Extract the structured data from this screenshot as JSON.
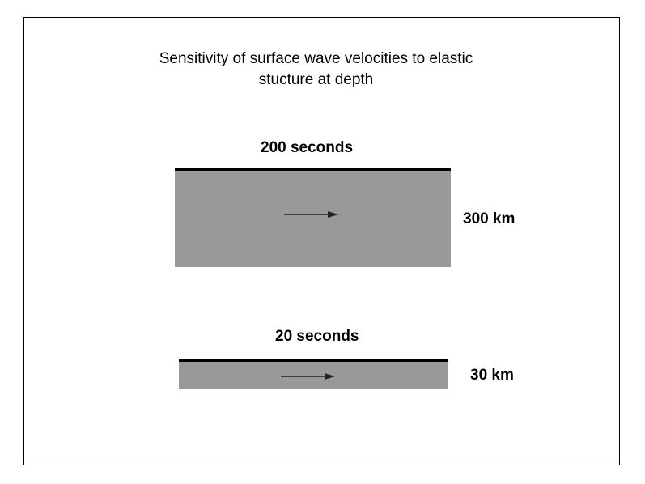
{
  "title": {
    "line1": "Sensitivity of surface wave velocities to elastic",
    "line2": "stucture at depth"
  },
  "colors": {
    "layer_fill": "#999999",
    "surface_line": "#000000",
    "arrow": "#222222",
    "frame_border": "#000000"
  },
  "panels": [
    {
      "period_label": "200 seconds",
      "depth_label": "300 km",
      "arrow": "right-arrow-icon"
    },
    {
      "period_label": "20 seconds",
      "depth_label": "30 km",
      "arrow": "right-arrow-icon"
    }
  ]
}
